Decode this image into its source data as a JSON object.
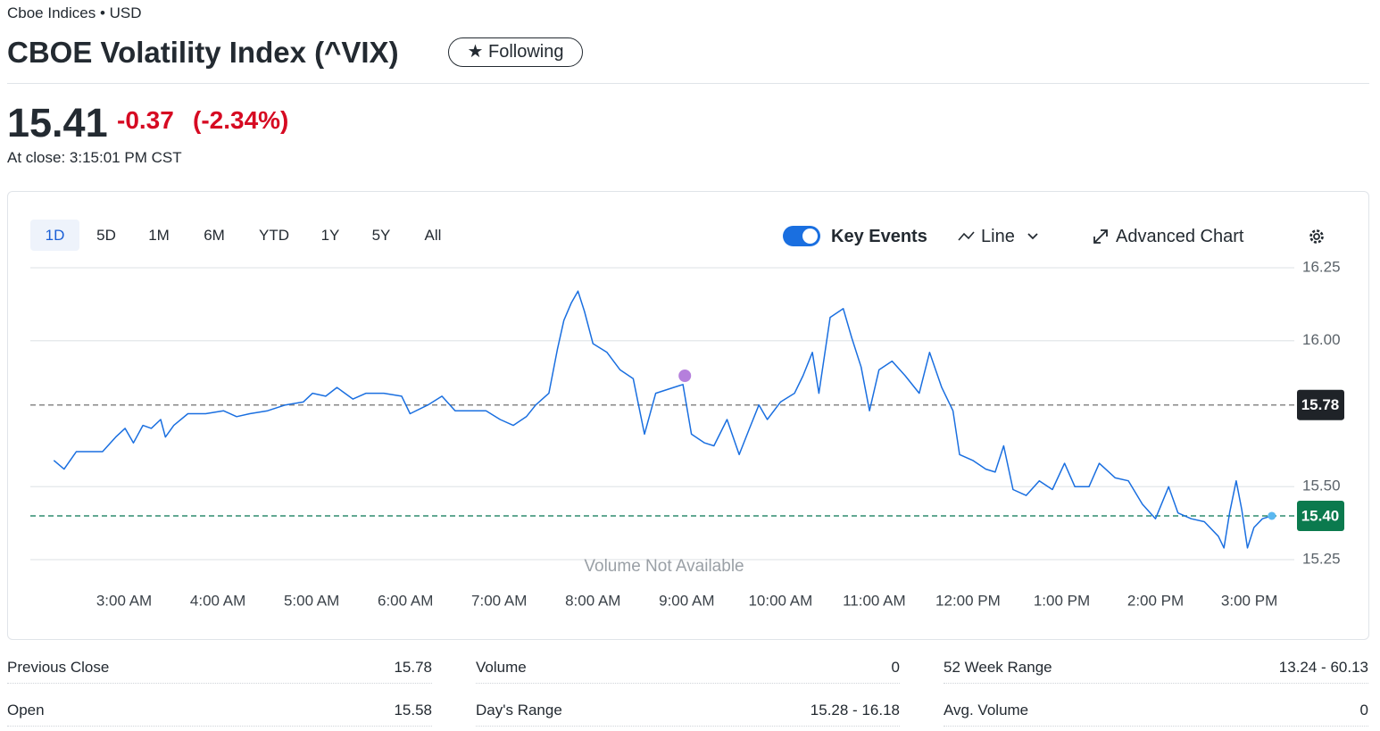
{
  "header": {
    "exchange": "Cboe Indices • USD",
    "title": "CBOE Volatility Index (^VIX)",
    "follow_button": "★ Following"
  },
  "quote": {
    "price": "15.41",
    "change": "-0.37",
    "change_percent": "(-2.34%)",
    "close_time": "At close: 3:15:01 PM CST"
  },
  "range_buttons": [
    "1D",
    "5D",
    "1M",
    "6M",
    "YTD",
    "1Y",
    "5Y",
    "All"
  ],
  "controls": {
    "key_events": "Key Events",
    "chart_type": "Line",
    "advanced": "Advanced Chart"
  },
  "chart_data": {
    "type": "line",
    "color": "#1a6fe0",
    "x": [
      2.25,
      2.36,
      2.49,
      2.63,
      2.77,
      2.91,
      3.01,
      3.1,
      3.2,
      3.29,
      3.39,
      3.44,
      3.53,
      3.68,
      3.87,
      4.06,
      4.2,
      4.34,
      4.53,
      4.72,
      4.91,
      5.01,
      5.15,
      5.27,
      5.44,
      5.58,
      5.77,
      5.96,
      6.05,
      6.24,
      6.39,
      6.53,
      6.72,
      6.86,
      7.01,
      7.15,
      7.29,
      7.39,
      7.53,
      7.62,
      7.69,
      7.77,
      7.84,
      7.91,
      8.0,
      8.15,
      8.29,
      8.43,
      8.55,
      8.67,
      8.86,
      8.96,
      9.05,
      9.19,
      9.29,
      9.43,
      9.56,
      9.67,
      9.77,
      9.86,
      10.0,
      10.15,
      10.24,
      10.34,
      10.41,
      10.53,
      10.67,
      10.76,
      10.86,
      10.95,
      11.05,
      11.19,
      11.33,
      11.48,
      11.59,
      11.72,
      11.84,
      11.91,
      12.05,
      12.19,
      12.29,
      12.38,
      12.48,
      12.62,
      12.76,
      12.9,
      13.03,
      13.14,
      13.29,
      13.4,
      13.57,
      13.71,
      13.86,
      14.0,
      14.14,
      14.24,
      14.38,
      14.52,
      14.67,
      14.73,
      14.79,
      14.86,
      14.92,
      14.98,
      15.05,
      15.14,
      15.24
    ],
    "values": [
      15.59,
      15.56,
      15.62,
      15.62,
      15.62,
      15.67,
      15.7,
      15.65,
      15.71,
      15.7,
      15.73,
      15.67,
      15.71,
      15.75,
      15.75,
      15.76,
      15.74,
      15.75,
      15.76,
      15.78,
      15.79,
      15.82,
      15.81,
      15.84,
      15.8,
      15.82,
      15.82,
      15.81,
      15.75,
      15.78,
      15.81,
      15.76,
      15.76,
      15.76,
      15.73,
      15.71,
      15.74,
      15.78,
      15.82,
      15.97,
      16.07,
      16.13,
      16.17,
      16.1,
      15.99,
      15.96,
      15.9,
      15.87,
      15.68,
      15.82,
      15.84,
      15.85,
      15.68,
      15.65,
      15.64,
      15.73,
      15.61,
      15.7,
      15.78,
      15.73,
      15.79,
      15.82,
      15.88,
      15.96,
      15.82,
      16.08,
      16.11,
      16.01,
      15.91,
      15.76,
      15.9,
      15.93,
      15.88,
      15.82,
      15.96,
      15.84,
      15.76,
      15.61,
      15.59,
      15.56,
      15.55,
      15.64,
      15.49,
      15.47,
      15.52,
      15.49,
      15.58,
      15.5,
      15.5,
      15.58,
      15.53,
      15.52,
      15.44,
      15.39,
      15.5,
      15.41,
      15.39,
      15.38,
      15.33,
      15.29,
      15.41,
      15.52,
      15.42,
      15.29,
      15.36,
      15.39,
      15.4
    ],
    "xlim": [
      2,
      15.48
    ],
    "xticks": [
      {
        "value": 3,
        "label": "3:00 AM"
      },
      {
        "value": 4,
        "label": "4:00 AM"
      },
      {
        "value": 5,
        "label": "5:00 AM"
      },
      {
        "value": 6,
        "label": "6:00 AM"
      },
      {
        "value": 7,
        "label": "7:00 AM"
      },
      {
        "value": 8,
        "label": "8:00 AM"
      },
      {
        "value": 9,
        "label": "9:00 AM"
      },
      {
        "value": 10,
        "label": "10:00 AM"
      },
      {
        "value": 11,
        "label": "11:00 AM"
      },
      {
        "value": 12,
        "label": "12:00 PM"
      },
      {
        "value": 13,
        "label": "1:00 PM"
      },
      {
        "value": 14,
        "label": "2:00 PM"
      },
      {
        "value": 15,
        "label": "3:00 PM"
      }
    ],
    "ylim": [
      15.25,
      16.25
    ],
    "yticks": [
      16.25,
      {
        "value": 16,
        "label": "16.00"
      },
      {
        "value": 15.5,
        "label": "15.50"
      },
      15.25
    ],
    "grid": true,
    "reference_lines": [
      {
        "value": 15.78,
        "color": "#888888",
        "tag_color": "#1f2328"
      },
      {
        "value": {
          "value": 15.4,
          "label": "15.40"
        },
        "color": "#2e8b6e",
        "tag_color": "#0b7a4e"
      }
    ],
    "events": [
      {
        "x": 8.98,
        "value": 15.88,
        "color": "#b57fdc"
      }
    ],
    "annotation": "Volume Not Available"
  },
  "stats": [
    [
      "Previous Close",
      "15.78"
    ],
    [
      "Volume",
      "0"
    ],
    [
      "52 Week Range",
      "13.24 - 60.13"
    ],
    [
      "Open",
      "15.58"
    ],
    [
      "Day's Range",
      "15.28 - 16.18"
    ],
    [
      "Avg. Volume",
      "0"
    ]
  ]
}
